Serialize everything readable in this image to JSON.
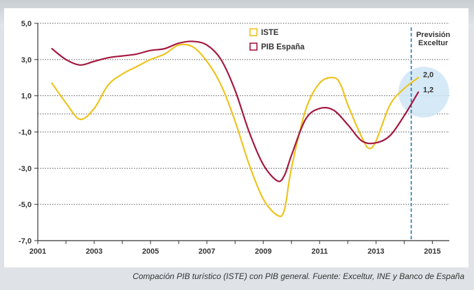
{
  "chart_data": {
    "type": "line",
    "xlim": [
      2001,
      2015.6
    ],
    "ylim": [
      -7.0,
      5.0
    ],
    "xticks": [
      2001,
      2003,
      2005,
      2007,
      2009,
      2011,
      2013,
      2015
    ],
    "xtick_labels": [
      "2001",
      "2003",
      "2005",
      "2007",
      "2009",
      "2011",
      "2013",
      "2015"
    ],
    "yticks": [
      5.0,
      3.0,
      1.0,
      -1.0,
      -3.0,
      -5.0,
      -7.0
    ],
    "ytick_labels": [
      "5,0",
      "3,0",
      "1,0",
      "-1,0",
      "-3,0",
      "-5,0",
      "-7,0"
    ],
    "gridlines_y": [
      5.0,
      3.0,
      1.0,
      0.0,
      -1.0,
      -3.0,
      -5.0
    ],
    "forecast_marker": {
      "x": 2014.25,
      "label_lines": [
        "Previsión",
        "Exceltur"
      ]
    },
    "series": [
      {
        "name": "ISTE",
        "color": "#eec31c",
        "end_label": "2,0",
        "points": [
          [
            2001.5,
            1.7
          ],
          [
            2002.0,
            0.6
          ],
          [
            2002.5,
            -0.3
          ],
          [
            2003.0,
            0.3
          ],
          [
            2003.5,
            1.6
          ],
          [
            2004.0,
            2.2
          ],
          [
            2004.5,
            2.6
          ],
          [
            2005.0,
            3.0
          ],
          [
            2005.5,
            3.3
          ],
          [
            2006.0,
            3.8
          ],
          [
            2006.5,
            3.7
          ],
          [
            2007.0,
            2.9
          ],
          [
            2007.5,
            1.6
          ],
          [
            2008.0,
            -0.4
          ],
          [
            2008.5,
            -2.8
          ],
          [
            2009.0,
            -4.7
          ],
          [
            2009.5,
            -5.6
          ],
          [
            2009.75,
            -5.3
          ],
          [
            2010.0,
            -3.0
          ],
          [
            2010.5,
            0.2
          ],
          [
            2011.0,
            1.7
          ],
          [
            2011.5,
            2.0
          ],
          [
            2011.75,
            1.6
          ],
          [
            2012.0,
            0.5
          ],
          [
            2012.5,
            -1.3
          ],
          [
            2012.75,
            -1.9
          ],
          [
            2013.0,
            -1.5
          ],
          [
            2013.5,
            0.5
          ],
          [
            2014.0,
            1.4
          ],
          [
            2014.5,
            2.0
          ]
        ]
      },
      {
        "name": "PIB España",
        "color": "#a3173e",
        "end_label": "1,2",
        "points": [
          [
            2001.5,
            3.6
          ],
          [
            2002.0,
            3.0
          ],
          [
            2002.5,
            2.7
          ],
          [
            2003.0,
            2.9
          ],
          [
            2003.5,
            3.1
          ],
          [
            2004.0,
            3.2
          ],
          [
            2004.5,
            3.3
          ],
          [
            2005.0,
            3.5
          ],
          [
            2005.5,
            3.6
          ],
          [
            2006.0,
            3.9
          ],
          [
            2006.5,
            4.0
          ],
          [
            2007.0,
            3.8
          ],
          [
            2007.5,
            3.0
          ],
          [
            2008.0,
            1.3
          ],
          [
            2008.5,
            -1.0
          ],
          [
            2009.0,
            -2.8
          ],
          [
            2009.5,
            -3.7
          ],
          [
            2009.75,
            -3.4
          ],
          [
            2010.0,
            -2.3
          ],
          [
            2010.5,
            -0.3
          ],
          [
            2011.0,
            0.3
          ],
          [
            2011.5,
            0.2
          ],
          [
            2012.0,
            -0.6
          ],
          [
            2012.5,
            -1.5
          ],
          [
            2013.0,
            -1.6
          ],
          [
            2013.5,
            -1.2
          ],
          [
            2014.0,
            -0.1
          ],
          [
            2014.5,
            1.2
          ]
        ]
      }
    ],
    "legend": {
      "position": "top-center"
    }
  },
  "caption": "Compación PIB turístico (ISTE) con PIB general. Fuente: Exceltur, INE y Banco de España"
}
